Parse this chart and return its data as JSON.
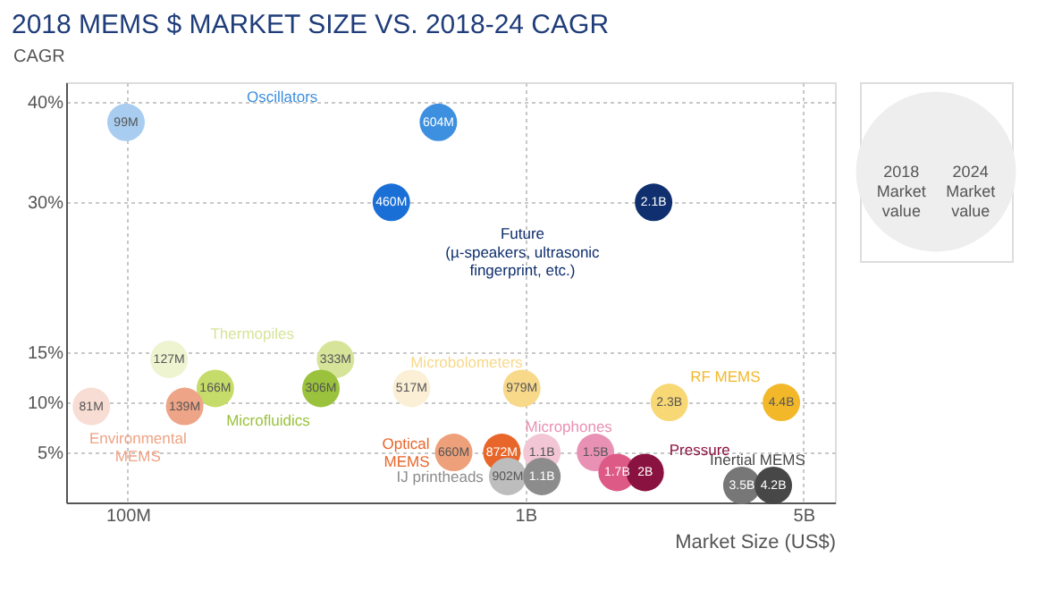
{
  "chart_data": [
    {
      "type": "scatter",
      "title": "2018 MEMS $ MARKET SIZE VS. 2018-24 CAGR",
      "xlabel": "Market Size (US$)",
      "ylabel": "CAGR",
      "log": "x",
      "marker": "circle",
      "grid": true,
      "xlim": [
        70000000,
        6000000000
      ],
      "xticks": [
        {
          "value": 100000000,
          "label": "100M"
        },
        {
          "value": 1000000000,
          "label": "1B"
        },
        {
          "value": 5000000000,
          "label": "5B"
        }
      ],
      "ylim": [
        0,
        42
      ],
      "yticks": [
        {
          "value": 5,
          "label": "5%"
        },
        {
          "value": 10,
          "label": "10%"
        },
        {
          "value": 15,
          "label": "15%"
        },
        {
          "value": 30,
          "label": "30%"
        },
        {
          "value": 40,
          "label": "40%"
        }
      ],
      "series": [
        {
          "name": "Oscillators",
          "x": [
            99000000,
            604000000
          ],
          "values": [
            38,
            38
          ],
          "colors": [
            "#a8cdf0",
            "#3d8fe0"
          ]
        },
        {
          "name": "Future\n(µ-speakers, ultrasonic\nfingerprint, etc.)",
          "x": [
            460000000,
            2100000000
          ],
          "values": [
            30,
            30
          ],
          "colors": [
            "#1a6fd6",
            "#0f2f6e"
          ]
        },
        {
          "name": "Thermopiles",
          "x": [
            127000000,
            333000000
          ],
          "values": [
            14.3,
            14.3
          ],
          "colors": [
            "#eef3d0",
            "#d6e49a"
          ]
        },
        {
          "name": "Microfluidics",
          "x": [
            166000000,
            306000000
          ],
          "values": [
            11.4,
            11.4
          ],
          "colors": [
            "#c5dc6a",
            "#9ac23c"
          ]
        },
        {
          "name": "Microbolometers",
          "x": [
            517000000,
            979000000
          ],
          "values": [
            11.4,
            11.4
          ],
          "colors": [
            "#fbefd6",
            "#f8d98a"
          ]
        },
        {
          "name": "RF MEMS",
          "x": [
            2300000000,
            4400000000
          ],
          "values": [
            10,
            10
          ],
          "colors": [
            "#f8d775",
            "#f2b82a"
          ]
        },
        {
          "name": "Environmental\nMEMS",
          "x": [
            81000000,
            139000000
          ],
          "values": [
            9.6,
            9.6
          ],
          "colors": [
            "#f7ddd3",
            "#eea486"
          ]
        },
        {
          "name": "Optical\nMEMS",
          "x": [
            660000000,
            872000000
          ],
          "values": [
            5,
            5
          ],
          "colors": [
            "#eea07a",
            "#e8662a"
          ]
        },
        {
          "name": "Microphones",
          "x": [
            1100000000,
            1500000000
          ],
          "values": [
            5,
            5
          ],
          "colors": [
            "#f3c6d6",
            "#e891b4"
          ]
        },
        {
          "name": "Pressure",
          "x": [
            1700000000,
            2000000000
          ],
          "values": [
            3,
            3
          ],
          "colors": [
            "#dd5a86",
            "#8a1240"
          ]
        },
        {
          "name": "IJ printheads",
          "x": [
            902000000,
            1100000000
          ],
          "values": [
            2.6,
            2.6
          ],
          "colors": [
            "#bdbdbd",
            "#8c8c8c"
          ]
        },
        {
          "name": "Inertial MEMS",
          "x": [
            3500000000,
            4200000000
          ],
          "values": [
            1.7,
            1.7
          ],
          "colors": [
            "#777777",
            "#474747"
          ]
        }
      ],
      "annotations": [
        {
          "text": "99M",
          "x": 99000000,
          "y": 38
        },
        {
          "text": "604M",
          "x": 604000000,
          "y": 38
        },
        {
          "text": "460M",
          "x": 460000000,
          "y": 30
        },
        {
          "text": "2.1B",
          "x": 2100000000,
          "y": 30
        },
        {
          "text": "127M",
          "x": 127000000,
          "y": 14.3
        },
        {
          "text": "333M",
          "x": 333000000,
          "y": 14.3
        },
        {
          "text": "166M",
          "x": 166000000,
          "y": 11.4
        },
        {
          "text": "306M",
          "x": 306000000,
          "y": 11.4
        },
        {
          "text": "517M",
          "x": 517000000,
          "y": 11.4
        },
        {
          "text": "979M",
          "x": 979000000,
          "y": 11.4
        },
        {
          "text": "2.3B",
          "x": 2300000000,
          "y": 10
        },
        {
          "text": "4.4B",
          "x": 4400000000,
          "y": 10
        },
        {
          "text": "81M",
          "x": 81000000,
          "y": 9.6
        },
        {
          "text": "139M",
          "x": 139000000,
          "y": 9.6
        },
        {
          "text": "660M",
          "x": 660000000,
          "y": 5
        },
        {
          "text": "872M",
          "x": 872000000,
          "y": 5
        },
        {
          "text": "1.1B",
          "x": 1100000000,
          "y": 5
        },
        {
          "text": "1.5B",
          "x": 1500000000,
          "y": 5
        },
        {
          "text": "1.7B",
          "x": 1700000000,
          "y": 3
        },
        {
          "text": "2B",
          "x": 2000000000,
          "y": 3
        },
        {
          "text": "902M",
          "x": 902000000,
          "y": 2.6
        },
        {
          "text": "1.1B",
          "x": 1100000000,
          "y": 2.6
        },
        {
          "text": "3.5B",
          "x": 3500000000,
          "y": 1.7
        },
        {
          "text": "4.2B",
          "x": 4200000000,
          "y": 1.7
        }
      ]
    },
    {
      "type": "other",
      "annotations": [
        "2018 Market value",
        "2024 Market value"
      ]
    }
  ]
}
